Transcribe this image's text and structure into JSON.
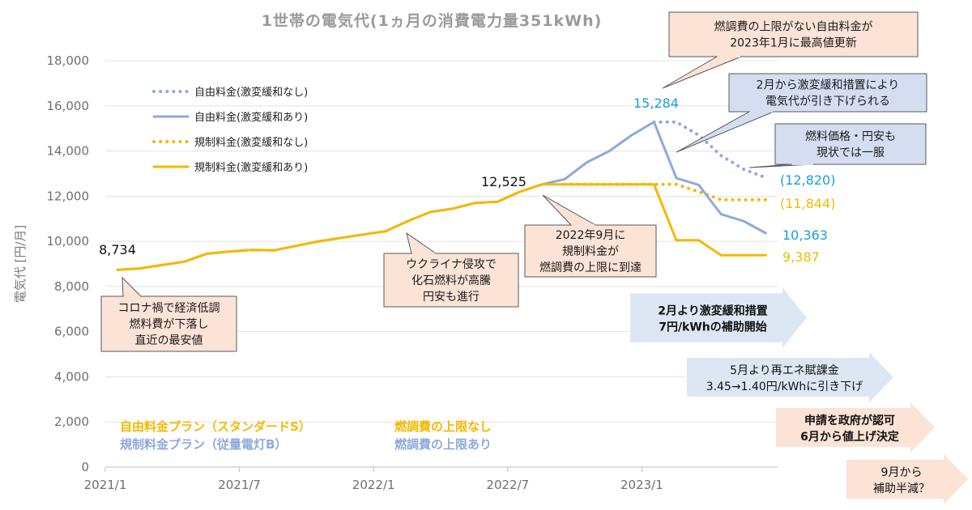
{
  "chart_data": {
    "type": "line",
    "title": "1世帯の電気代(1ヵ月の消費電力量351kWh)",
    "ylabel": "電気代 [円/月]",
    "ylim": [
      0,
      18000
    ],
    "yticks": [
      "0",
      "2,000",
      "4,000",
      "6,000",
      "8,000",
      "10,000",
      "12,000",
      "14,000",
      "16,000",
      "18,000"
    ],
    "xticks": [
      "2021/1",
      "2021/7",
      "2022/1",
      "2022/7",
      "2023/1"
    ],
    "grid": "horizontal",
    "legend_position": "top-left",
    "x": [
      "2021/1",
      "2021/2",
      "2021/3",
      "2021/4",
      "2021/5",
      "2021/6",
      "2021/7",
      "2021/8",
      "2021/9",
      "2021/10",
      "2021/11",
      "2021/12",
      "2022/1",
      "2022/2",
      "2022/3",
      "2022/4",
      "2022/5",
      "2022/6",
      "2022/7",
      "2022/8",
      "2022/9",
      "2022/10",
      "2022/11",
      "2022/12",
      "2023/1",
      "2023/2",
      "2023/3",
      "2023/4",
      "2023/5",
      "2023/6"
    ],
    "series": [
      {
        "name": "自由料金(激変緩和なし)",
        "color": "#8eaadb",
        "dashed": true,
        "values": [
          null,
          null,
          null,
          null,
          null,
          null,
          null,
          null,
          null,
          null,
          null,
          null,
          null,
          null,
          null,
          null,
          null,
          null,
          null,
          null,
          null,
          null,
          null,
          null,
          15284,
          15284,
          14700,
          13800,
          13200,
          12820
        ]
      },
      {
        "name": "自由料金(激変緩和あり)",
        "color": "#8eaadb",
        "dashed": false,
        "values": [
          8734,
          8800,
          8950,
          9100,
          9450,
          9550,
          9620,
          9600,
          9800,
          10000,
          10150,
          10300,
          10450,
          10900,
          11300,
          11450,
          11700,
          11750,
          12200,
          12525,
          12750,
          13500,
          14000,
          14700,
          15284,
          12800,
          12500,
          11200,
          10900,
          10363
        ]
      },
      {
        "name": "規制料金(激変緩和なし)",
        "color": "#f5b800",
        "dashed": true,
        "values": [
          null,
          null,
          null,
          null,
          null,
          null,
          null,
          null,
          null,
          null,
          null,
          null,
          null,
          null,
          null,
          null,
          null,
          null,
          null,
          null,
          12525,
          12525,
          12525,
          12525,
          12525,
          12525,
          12200,
          11844,
          11844,
          11844
        ]
      },
      {
        "name": "規制料金(激変緩和あり)",
        "color": "#f5b800",
        "dashed": false,
        "values": [
          8734,
          8800,
          8950,
          9100,
          9450,
          9550,
          9620,
          9600,
          9800,
          10000,
          10150,
          10300,
          10450,
          10900,
          11300,
          11450,
          11700,
          11750,
          12200,
          12525,
          12525,
          12525,
          12525,
          12525,
          12525,
          10050,
          10050,
          9387,
          9387,
          9387
        ]
      }
    ],
    "data_labels": [
      {
        "text": "8,734",
        "color": "#111111"
      },
      {
        "text": "12,525",
        "color": "#111111"
      },
      {
        "text": "15,284",
        "color": "#1aa0d8"
      },
      {
        "text": "(12,820)",
        "color": "#1aa0d8"
      },
      {
        "text": "(11,844)",
        "color": "#f5b800"
      },
      {
        "text": "10,363",
        "color": "#1aa0d8"
      },
      {
        "text": "9,387",
        "color": "#f5b800"
      }
    ],
    "callouts": [
      {
        "lines": [
          "コロナ禍で経済低調",
          "燃料費が下落し",
          "直近の最安値"
        ]
      },
      {
        "lines": [
          "ウクライナ侵攻で",
          "化石燃料が高騰",
          "円安も進行"
        ]
      },
      {
        "lines": [
          "2022年9月に",
          "規制料金が",
          "燃調費の上限に到達"
        ]
      },
      {
        "lines": [
          "燃調費の上限がない自由料金が",
          "2023年1月に最高値更新"
        ]
      },
      {
        "lines": [
          "2月から激変緩和措置により",
          "電気代が引き下げられる"
        ]
      },
      {
        "lines": [
          "燃料価格・円安も",
          "現状では一服"
        ]
      }
    ],
    "arrows": [
      {
        "lines": [
          "2月より激変緩和措置",
          "7円/kWhの補助開始"
        ],
        "bold": true
      },
      {
        "lines": [
          "5月より再エネ賦課金",
          "3.45→1.40円/kWhに引き下げ"
        ],
        "bold": false
      },
      {
        "lines": [
          "申請を政府が認可",
          "6月から値上げ決定"
        ],
        "bold": true
      },
      {
        "lines": [
          "9月から",
          "補助半減？"
        ],
        "bold": false
      }
    ],
    "plan_notes": [
      {
        "left": "自由料金プラン（スタンダードS）",
        "right": "燃調費の上限なし",
        "color": "#f5b800"
      },
      {
        "left": "規制料金プラン（従量電灯B）",
        "right": "燃調費の上限あり",
        "color": "#8eaadb"
      }
    ]
  }
}
